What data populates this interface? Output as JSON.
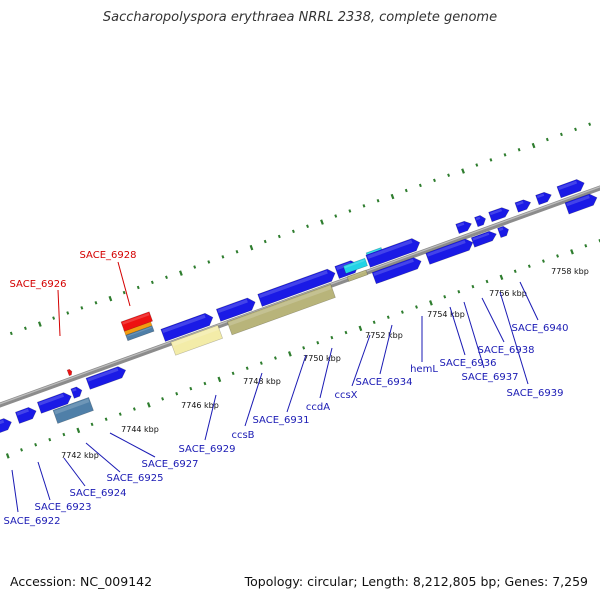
{
  "title": "Saccharopolyspora erythraea NRRL 2338, complete genome",
  "footer": {
    "accession": "Accession: NC_009142",
    "topology": "Topology: circular; Length: 8,212,805 bp; Genes: 7,259"
  },
  "colors": {
    "backbone": "#8c8c8c",
    "ticks": "#2e7d2e",
    "gene_blue": "#1a1ae6",
    "label_blue": "#1a1ab4",
    "label_red": "#d40000",
    "rrna_tan": "#b8b47a",
    "pale_yellow": "#f3eca8",
    "steel_blue": "#4f7fa8",
    "cyan": "#22d3e6",
    "orange": "#f39c12",
    "red": "#ee1111"
  },
  "scale": {
    "unit": "kbp",
    "ticks": [
      "7742 kbp",
      "7744 kbp",
      "7746 kbp",
      "7748 kbp",
      "7750 kbp",
      "7752 kbp",
      "7754 kbp",
      "7756 kbp",
      "7758 kbp"
    ]
  },
  "genes": [
    {
      "label": "SACE_6922",
      "color": "label_blue",
      "strand": "lower"
    },
    {
      "label": "SACE_6923",
      "color": "label_blue",
      "strand": "lower"
    },
    {
      "label": "SACE_6924",
      "color": "label_blue",
      "strand": "lower"
    },
    {
      "label": "SACE_6925",
      "color": "label_blue",
      "strand": "lower"
    },
    {
      "label": "SACE_6926",
      "color": "label_red",
      "strand": "upper"
    },
    {
      "label": "SACE_6927",
      "color": "label_blue",
      "strand": "lower"
    },
    {
      "label": "SACE_6928",
      "color": "label_red",
      "strand": "upper"
    },
    {
      "label": "SACE_6929",
      "color": "label_blue",
      "strand": "lower"
    },
    {
      "label": "ccsB",
      "color": "label_blue",
      "strand": "lower"
    },
    {
      "label": "SACE_6931",
      "color": "label_blue",
      "strand": "lower"
    },
    {
      "label": "ccdA",
      "color": "label_blue",
      "strand": "lower"
    },
    {
      "label": "ccsX",
      "color": "label_blue",
      "strand": "lower"
    },
    {
      "label": "SACE_6934",
      "color": "label_blue",
      "strand": "lower"
    },
    {
      "label": "hemL",
      "color": "label_blue",
      "strand": "lower"
    },
    {
      "label": "SACE_6936",
      "color": "label_blue",
      "strand": "lower"
    },
    {
      "label": "SACE_6937",
      "color": "label_blue",
      "strand": "lower"
    },
    {
      "label": "SACE_6938",
      "color": "label_blue",
      "strand": "lower"
    },
    {
      "label": "SACE_6939",
      "color": "label_blue",
      "strand": "lower"
    },
    {
      "label": "SACE_6940",
      "color": "label_blue",
      "strand": "lower"
    }
  ]
}
